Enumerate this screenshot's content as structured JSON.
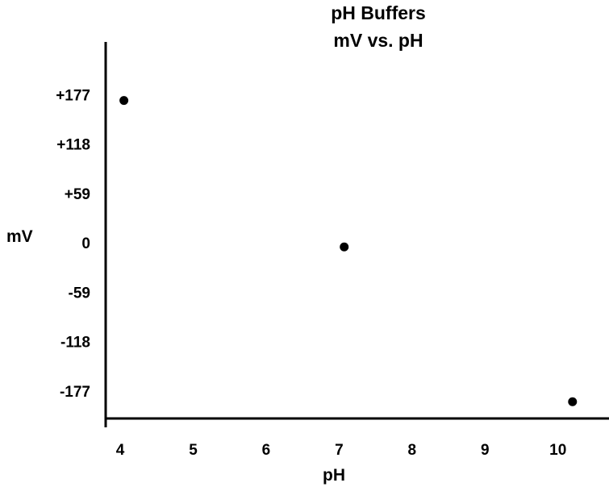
{
  "chart_data": {
    "type": "scatter",
    "title": [
      "pH Buffers",
      "mV vs. pH"
    ],
    "xlabel": "pH",
    "ylabel": "mV",
    "x_ticks": [
      4,
      5,
      6,
      7,
      8,
      9,
      10
    ],
    "x_tick_labels": [
      "4",
      "5",
      "6",
      "7",
      "8",
      "9",
      "10"
    ],
    "y_ticks": [
      177,
      118,
      59,
      0,
      -59,
      -118,
      -177
    ],
    "y_tick_labels": [
      "+177",
      "+118",
      "+59",
      "0",
      "-59",
      "-118",
      "-177"
    ],
    "xlim": [
      3.8,
      10.7
    ],
    "ylim": [
      -210,
      240
    ],
    "grid": false,
    "legend": "none",
    "series": [
      {
        "points": [
          {
            "x": 4.05,
            "y": 170
          },
          {
            "x": 7.07,
            "y": -5
          },
          {
            "x": 10.2,
            "y": -190
          }
        ]
      }
    ],
    "colors": {
      "marker": "#000000",
      "axis": "#000000",
      "text": "#000000"
    }
  }
}
